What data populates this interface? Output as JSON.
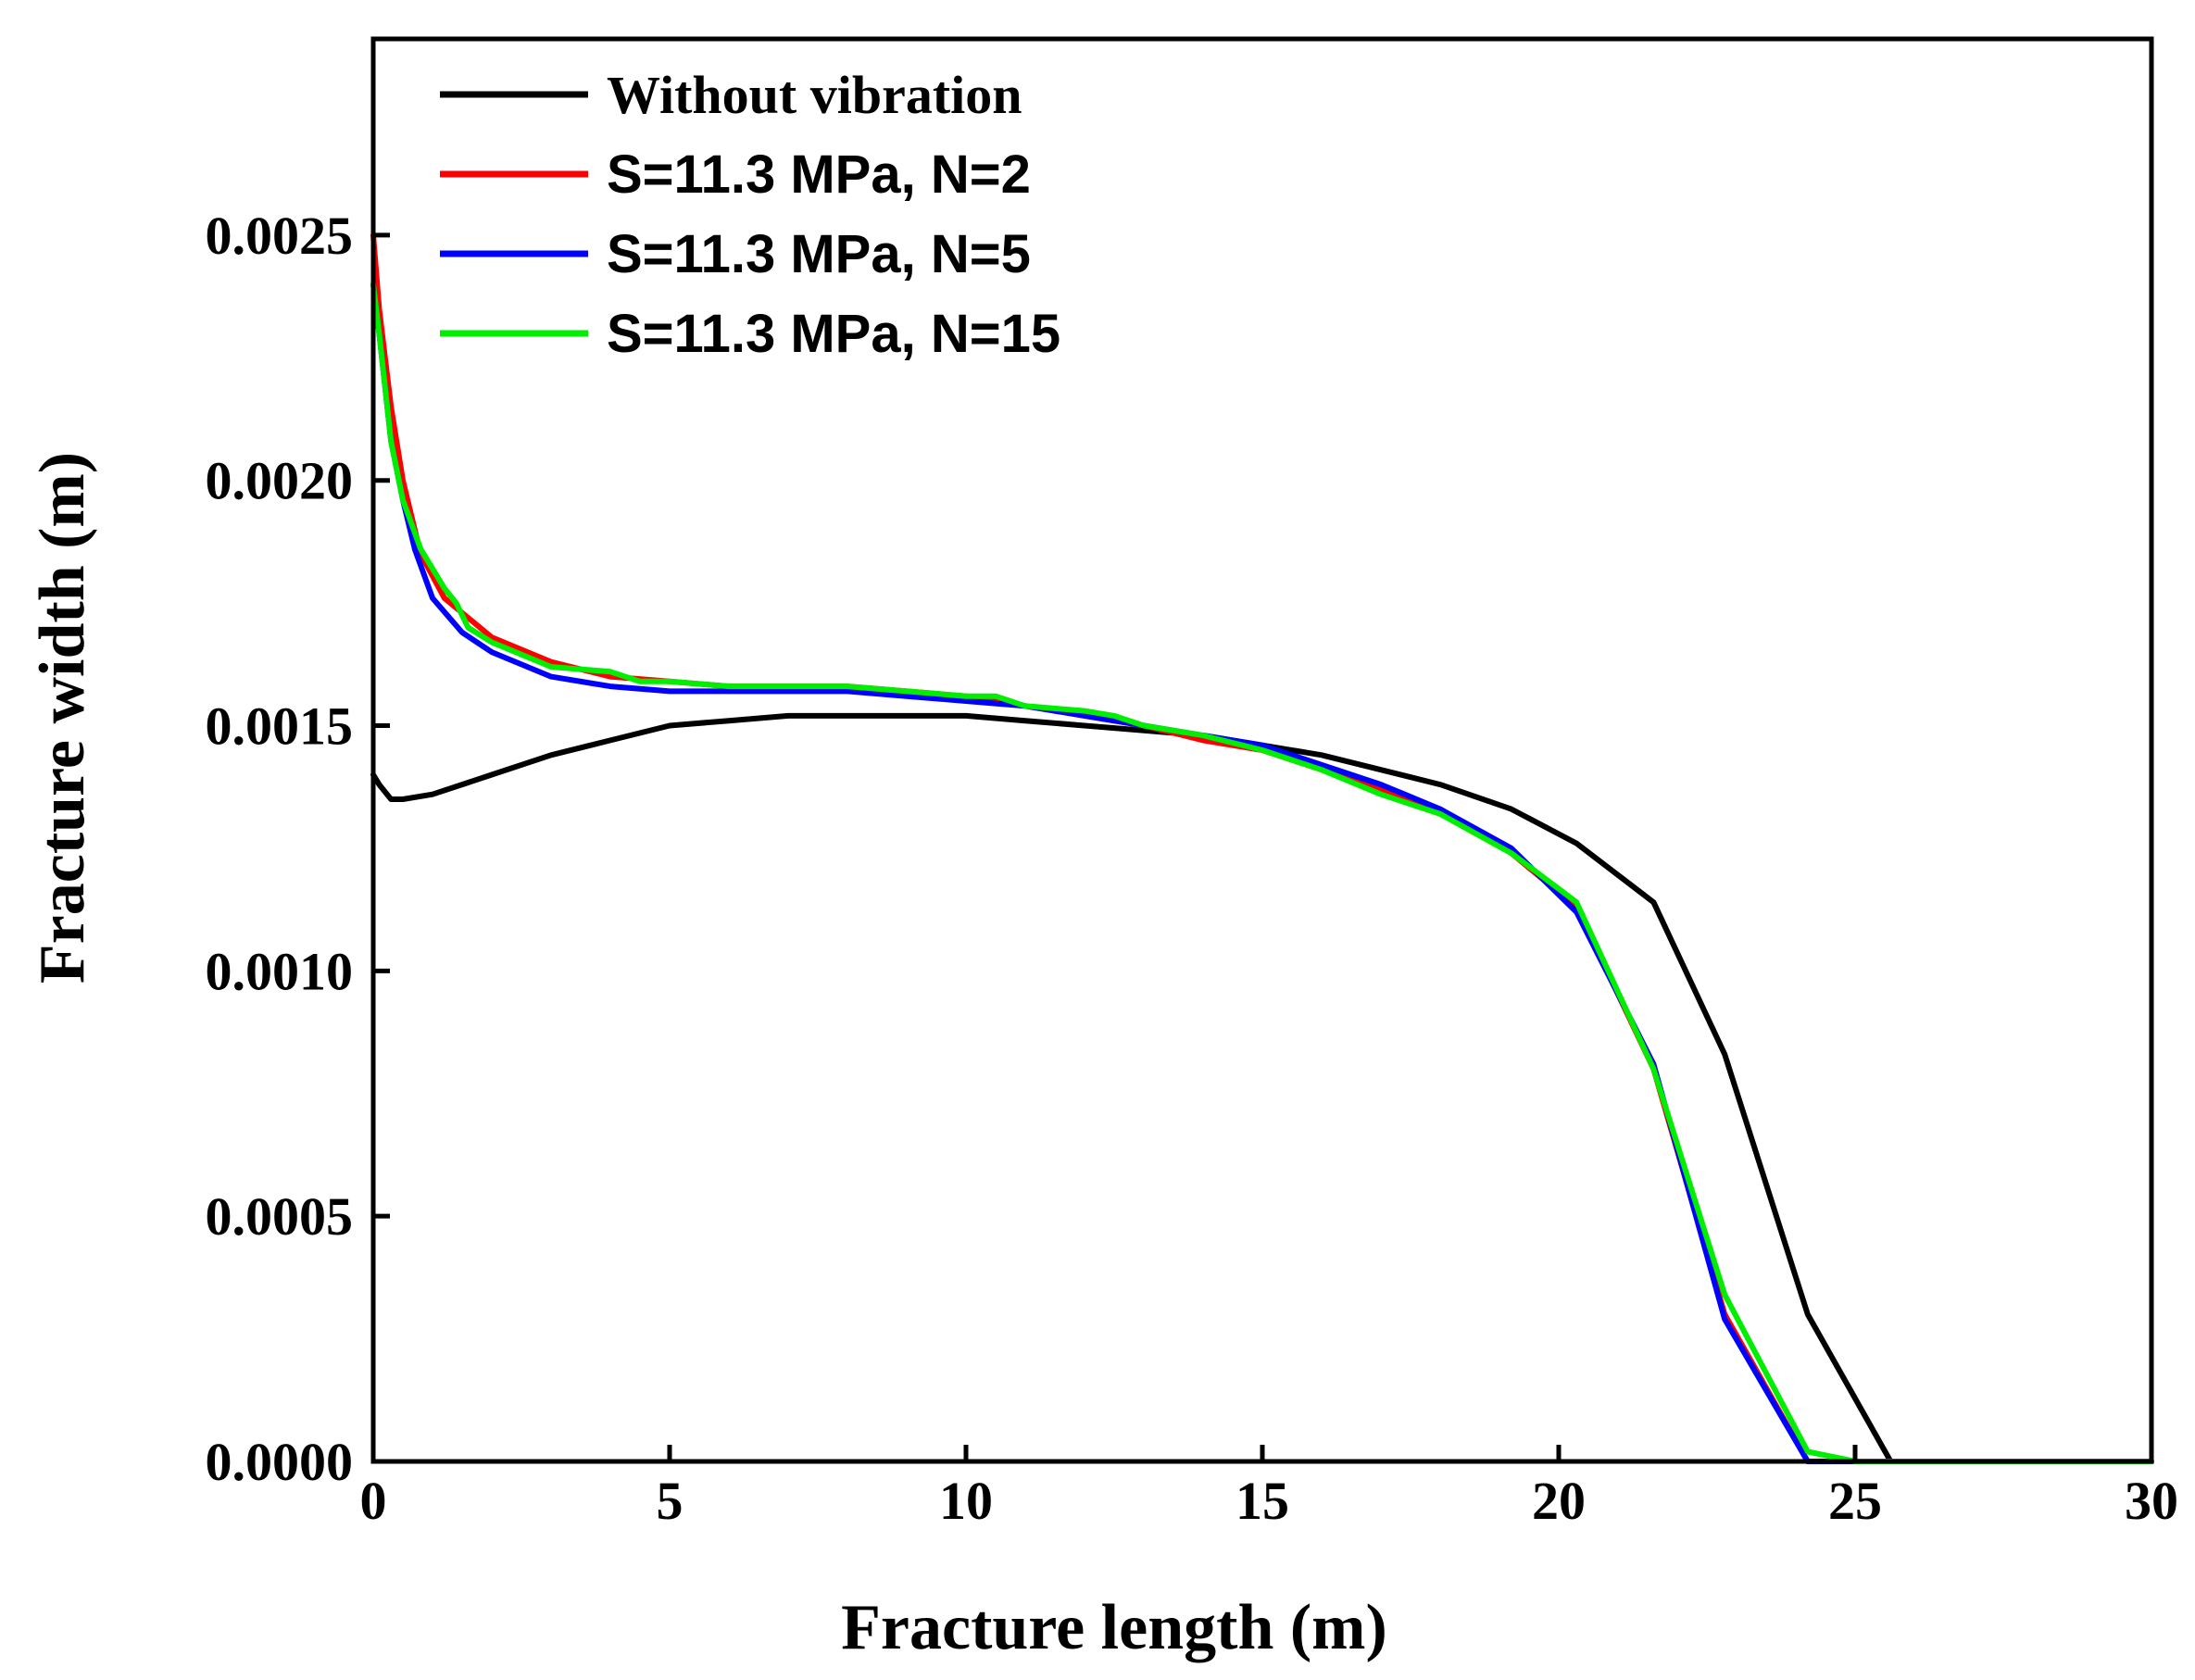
{
  "chart_data": {
    "type": "line",
    "title": "",
    "xlabel": "Fracture length (m)",
    "ylabel": "Fracture width (m)",
    "xlim": [
      0,
      30
    ],
    "ylim": [
      0,
      0.0029
    ],
    "grid": false,
    "legend_position": "top-left",
    "xticks": [
      0,
      5,
      10,
      15,
      20,
      25,
      30
    ],
    "xtick_labels": [
      "0",
      "5",
      "10",
      "15",
      "20",
      "25",
      "30"
    ],
    "yticks": [
      0,
      0.0005,
      0.001,
      0.0015,
      0.002,
      0.0025
    ],
    "ytick_labels": [
      "0.0000",
      "0.0005",
      "0.0010",
      "0.0015",
      "0.0020",
      "0.0025"
    ],
    "series": [
      {
        "name": "Without vibration",
        "color": "#000000",
        "x": [
          0,
          0.1,
          0.3,
          0.5,
          1,
          2,
          3,
          4,
          5,
          6,
          7,
          8,
          9,
          10,
          11,
          12,
          13,
          14,
          15,
          16,
          17,
          18,
          19.2,
          20.3,
          21.6,
          22.8,
          24.2,
          25.6,
          26,
          30
        ],
        "y": [
          0.0014,
          0.00138,
          0.00135,
          0.00135,
          0.00136,
          0.0014,
          0.00144,
          0.00147,
          0.0015,
          0.00151,
          0.00152,
          0.00152,
          0.00152,
          0.00152,
          0.00151,
          0.0015,
          0.00149,
          0.00148,
          0.00146,
          0.00144,
          0.00141,
          0.00138,
          0.00133,
          0.00126,
          0.00114,
          0.00083,
          0.0003,
          0.0,
          0.0,
          0.0
        ]
      },
      {
        "name": "S=11.3 MPa, N=2",
        "color": "#ff0000",
        "x": [
          0,
          0.1,
          0.3,
          0.5,
          0.8,
          1.2,
          1.6,
          2,
          3,
          4,
          5,
          6,
          7,
          8,
          9,
          10,
          11,
          12,
          13,
          14,
          15,
          16,
          17,
          18,
          19.2,
          20.3,
          21.6,
          22.8,
          24.2,
          25,
          26,
          30
        ],
        "y": [
          0.0025,
          0.00235,
          0.00215,
          0.002,
          0.00185,
          0.00176,
          0.00172,
          0.00168,
          0.00163,
          0.0016,
          0.00159,
          0.00158,
          0.00158,
          0.00158,
          0.00157,
          0.00156,
          0.00154,
          0.00152,
          0.0015,
          0.00147,
          0.00145,
          0.00141,
          0.00137,
          0.00133,
          0.00124,
          0.00113,
          0.0008,
          0.0003,
          0.0,
          0.0,
          0.0,
          0.0
        ]
      },
      {
        "name": "S=11.3 MPa, N=5",
        "color": "#0000ff",
        "x": [
          0,
          0.1,
          0.3,
          0.5,
          0.7,
          1,
          1.5,
          2,
          3,
          4,
          5,
          6,
          7,
          8,
          9,
          10,
          11,
          12,
          13,
          14,
          15,
          16,
          17,
          18,
          19.2,
          20.3,
          21.6,
          22.8,
          24.2,
          25,
          26,
          30
        ],
        "y": [
          0.0024,
          0.0023,
          0.00208,
          0.00196,
          0.00186,
          0.00176,
          0.00169,
          0.00165,
          0.0016,
          0.00158,
          0.00157,
          0.00157,
          0.00157,
          0.00157,
          0.00156,
          0.00155,
          0.00154,
          0.00152,
          0.0015,
          0.00148,
          0.00146,
          0.00142,
          0.00138,
          0.00133,
          0.00125,
          0.00112,
          0.00081,
          0.00029,
          0.0,
          0.0,
          0.0,
          0.0
        ]
      },
      {
        "name": "S=11.3 MPa, N=15",
        "color": "#00ee00",
        "x": [
          0,
          0.1,
          0.3,
          0.5,
          0.8,
          1.2,
          1.4,
          1.6,
          2,
          3,
          4,
          4.5,
          5,
          6,
          7,
          8,
          9,
          10,
          10.5,
          11,
          12,
          12.5,
          13,
          14,
          15,
          16,
          17,
          18,
          19.2,
          20.3,
          21.6,
          22.8,
          24.2,
          25,
          26,
          30
        ],
        "y": [
          0.0024,
          0.0023,
          0.00208,
          0.00196,
          0.00186,
          0.00178,
          0.00175,
          0.0017,
          0.00167,
          0.00162,
          0.00161,
          0.00159,
          0.00159,
          0.00158,
          0.00158,
          0.00158,
          0.00157,
          0.00156,
          0.00156,
          0.00154,
          0.00153,
          0.00152,
          0.0015,
          0.00148,
          0.00145,
          0.00141,
          0.00136,
          0.00132,
          0.00124,
          0.00114,
          0.0008,
          0.00034,
          2e-05,
          0.0,
          0.0,
          0.0
        ]
      }
    ]
  }
}
